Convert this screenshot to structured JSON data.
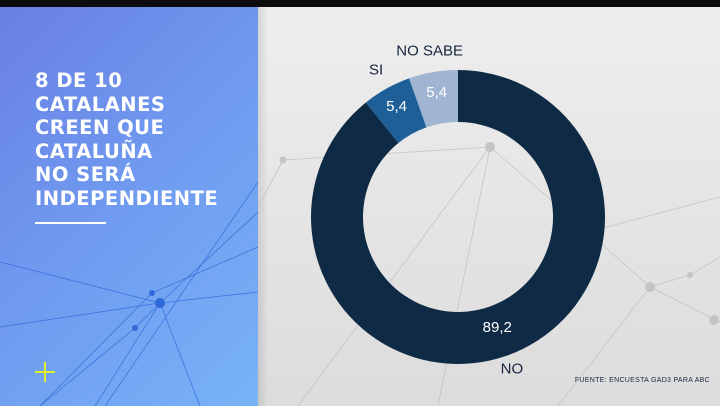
{
  "headline_lines": [
    "8 DE 10",
    "CATALANES",
    "CREEN QUE",
    "CATALUÑA",
    "NO SERÁ",
    "INDEPENDIENTE"
  ],
  "source": "FUENTE: ENCUESTA GAD3 PARA ABC",
  "colors": {
    "panel_blue": "#6f99ef",
    "accent_plus": "#e2ee2a",
    "no": "#0f2a44",
    "si": "#1f5f98",
    "no_sabe": "#9fb5d2"
  },
  "chart_data": {
    "type": "pie",
    "donut": true,
    "title": "",
    "categories": [
      "NO SABE",
      "SI",
      "NO"
    ],
    "values": [
      5.4,
      5.4,
      89.2
    ],
    "value_labels": [
      "5,4",
      "5,4",
      "89,2"
    ],
    "colors": [
      "#9fb5d2",
      "#1f5f98",
      "#0f2a44"
    ],
    "label_colors": [
      "#ffffff",
      "#ffffff",
      "#ffffff"
    ]
  }
}
